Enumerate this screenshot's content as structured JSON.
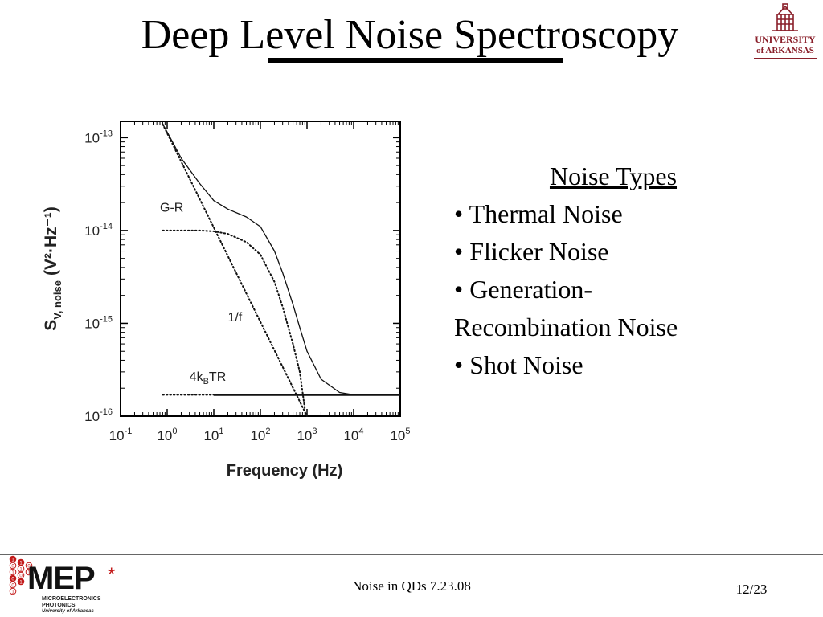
{
  "slide": {
    "title": "Deep Level Noise Spectroscopy",
    "footer_text": "Noise in QDs 7.23.08",
    "page_number": "12/23"
  },
  "university_logo": {
    "line1": "UNIVERSITY",
    "line2": "of ARKANSAS",
    "color": "#8a1f2a"
  },
  "mep_logo": {
    "text": "MEP",
    "star": "*",
    "sub1": "MICROELECTRONICS",
    "sub2": "PHOTONICS",
    "sub3": "University of Arkansas",
    "bit_digits": [
      "1",
      "0",
      "1",
      "0",
      "0",
      "1",
      "1",
      "1",
      "0",
      "1",
      "0",
      "1"
    ],
    "color": "#c31b1b"
  },
  "noise_panel": {
    "heading": "Noise Types",
    "items": [
      "• Thermal Noise",
      "• Flicker Noise",
      "• Generation-",
      "Recombination Noise",
      "• Shot Noise"
    ]
  },
  "chart_data": {
    "type": "line",
    "xlabel": "Frequency (Hz)",
    "ylabel_main": "S",
    "ylabel_sub": "V, noise",
    "ylabel_units": "(V²·Hz⁻¹)",
    "xscale": "log",
    "yscale": "log",
    "xlim": [
      0.1,
      100000
    ],
    "ylim": [
      1e-16,
      1.5e-13
    ],
    "x_ticks": [
      {
        "value": 0.1,
        "base": "10",
        "exp": "-1"
      },
      {
        "value": 1,
        "base": "10",
        "exp": "0"
      },
      {
        "value": 10,
        "base": "10",
        "exp": "1"
      },
      {
        "value": 100,
        "base": "10",
        "exp": "2"
      },
      {
        "value": 1000,
        "base": "10",
        "exp": "3"
      },
      {
        "value": 10000,
        "base": "10",
        "exp": "4"
      },
      {
        "value": 100000,
        "base": "10",
        "exp": "5"
      }
    ],
    "y_ticks": [
      {
        "value": 1e-16,
        "base": "10",
        "exp": "-16"
      },
      {
        "value": 1e-15,
        "base": "10",
        "exp": "-15"
      },
      {
        "value": 1e-14,
        "base": "10",
        "exp": "-14"
      },
      {
        "value": 1e-13,
        "base": "10",
        "exp": "-13"
      }
    ],
    "annotations": [
      {
        "text": "G-R",
        "x": 0.7,
        "y": 1.6e-14
      },
      {
        "text": "1/f",
        "x": 20,
        "y": 1.05e-15
      },
      {
        "text": "4k",
        "sub": "B",
        "rest": "TR",
        "x": 3,
        "y": 2.4e-16
      }
    ],
    "series": [
      {
        "style": "solid",
        "points": [
          [
            0.8,
            1.4e-13
          ],
          [
            1,
            1.15e-13
          ],
          [
            2,
            6e-14
          ],
          [
            5,
            3.2e-14
          ],
          [
            10,
            2.1e-14
          ],
          [
            20,
            1.7e-14
          ],
          [
            50,
            1.4e-14
          ],
          [
            100,
            1.1e-14
          ],
          [
            200,
            6e-15
          ],
          [
            300,
            3.5e-15
          ],
          [
            500,
            1.6e-15
          ],
          [
            700,
            9e-16
          ],
          [
            1000,
            5e-16
          ],
          [
            2000,
            2.5e-16
          ],
          [
            5000,
            1.8e-16
          ],
          [
            10000,
            1.7e-16
          ],
          [
            100000,
            1.7e-16
          ]
        ]
      },
      {
        "style": "dotted",
        "points": [
          [
            0.8,
            1.4e-13
          ],
          [
            1000,
            1e-16
          ]
        ]
      },
      {
        "style": "dotted",
        "points": [
          [
            0.8,
            1e-14
          ],
          [
            5,
            1e-14
          ],
          [
            10,
            9.8e-15
          ],
          [
            20,
            9.2e-15
          ],
          [
            50,
            7.5e-15
          ],
          [
            100,
            5.5e-15
          ],
          [
            200,
            2.8e-15
          ],
          [
            300,
            1.5e-15
          ],
          [
            500,
            6e-16
          ],
          [
            700,
            3e-16
          ],
          [
            900,
            1.2e-16
          ]
        ]
      },
      {
        "style": "dotted",
        "points": [
          [
            0.8,
            1.7e-16
          ],
          [
            100000,
            1.7e-16
          ]
        ]
      },
      {
        "style": "thick",
        "points": [
          [
            10,
            1.7e-16
          ],
          [
            100000,
            1.7e-16
          ]
        ]
      }
    ]
  }
}
